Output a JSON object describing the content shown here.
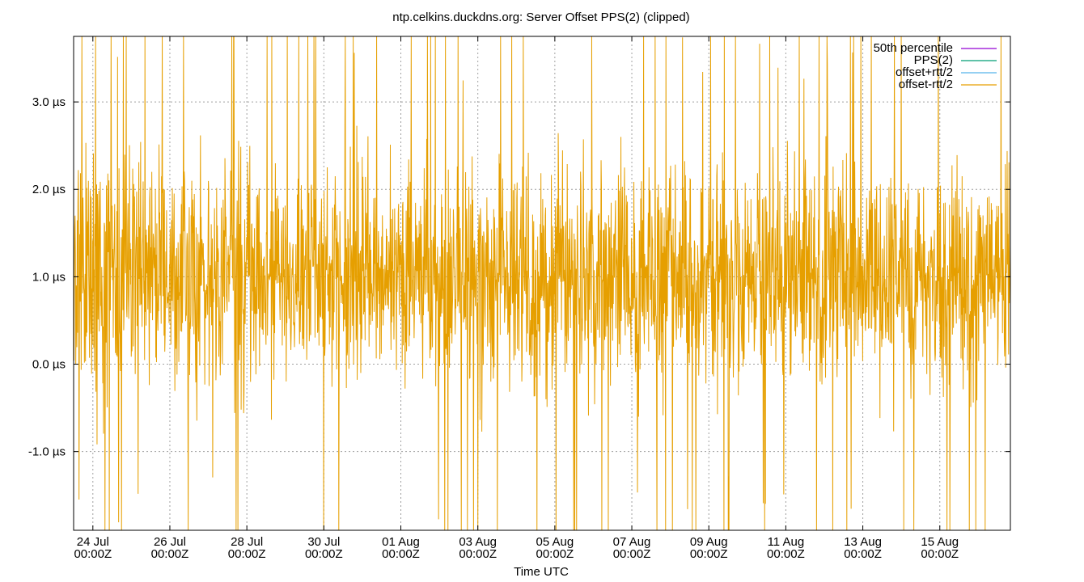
{
  "chart_data": {
    "type": "line",
    "title": "ntp.celkins.duckdns.org: Server Offset PPS(2) (clipped)",
    "xlabel": "Time UTC",
    "ylabel": "",
    "x_range": [
      "2023-07-23T12:00Z",
      "2023-08-16T20:00Z"
    ],
    "ylim": [
      -1.9,
      3.75
    ],
    "y_unit": "µs",
    "y_ticks": [
      {
        "value": -1.0,
        "label": "-1.0 µs"
      },
      {
        "value": 0.0,
        "label": "0.0 µs"
      },
      {
        "value": 1.0,
        "label": "1.0 µs"
      },
      {
        "value": 2.0,
        "label": "2.0 µs"
      },
      {
        "value": 3.0,
        "label": "3.0 µs"
      }
    ],
    "x_ticks": [
      {
        "value": "2023-07-24T00:00Z",
        "label": "24 Jul",
        "label2": "00:00Z"
      },
      {
        "value": "2023-07-26T00:00Z",
        "label": "26 Jul",
        "label2": "00:00Z"
      },
      {
        "value": "2023-07-28T00:00Z",
        "label": "28 Jul",
        "label2": "00:00Z"
      },
      {
        "value": "2023-07-30T00:00Z",
        "label": "30 Jul",
        "label2": "00:00Z"
      },
      {
        "value": "2023-08-01T00:00Z",
        "label": "01 Aug",
        "label2": "00:00Z"
      },
      {
        "value": "2023-08-03T00:00Z",
        "label": "03 Aug",
        "label2": "00:00Z"
      },
      {
        "value": "2023-08-05T00:00Z",
        "label": "05 Aug",
        "label2": "00:00Z"
      },
      {
        "value": "2023-08-07T00:00Z",
        "label": "07 Aug",
        "label2": "00:00Z"
      },
      {
        "value": "2023-08-09T00:00Z",
        "label": "09 Aug",
        "label2": "00:00Z"
      },
      {
        "value": "2023-08-11T00:00Z",
        "label": "11 Aug",
        "label2": "00:00Z"
      },
      {
        "value": "2023-08-13T00:00Z",
        "label": "13 Aug",
        "label2": "00:00Z"
      },
      {
        "value": "2023-08-15T00:00Z",
        "label": "15 Aug",
        "label2": "00:00Z"
      }
    ],
    "grid": true,
    "legend_position": "top-right",
    "series": [
      {
        "name": "50th percentile",
        "color": "#9400d3",
        "center": 1.0,
        "spread": 0.0
      },
      {
        "name": "PPS(2)",
        "color": "#009e73",
        "center": 1.0,
        "spread": 0.0
      },
      {
        "name": "offset+rtt/2",
        "color": "#56b4e9",
        "center": 1.0,
        "spread": 0.0
      },
      {
        "name": "offset-rtt/2",
        "color": "#e69f00",
        "center": 1.0,
        "spread": 0.85
      }
    ]
  }
}
